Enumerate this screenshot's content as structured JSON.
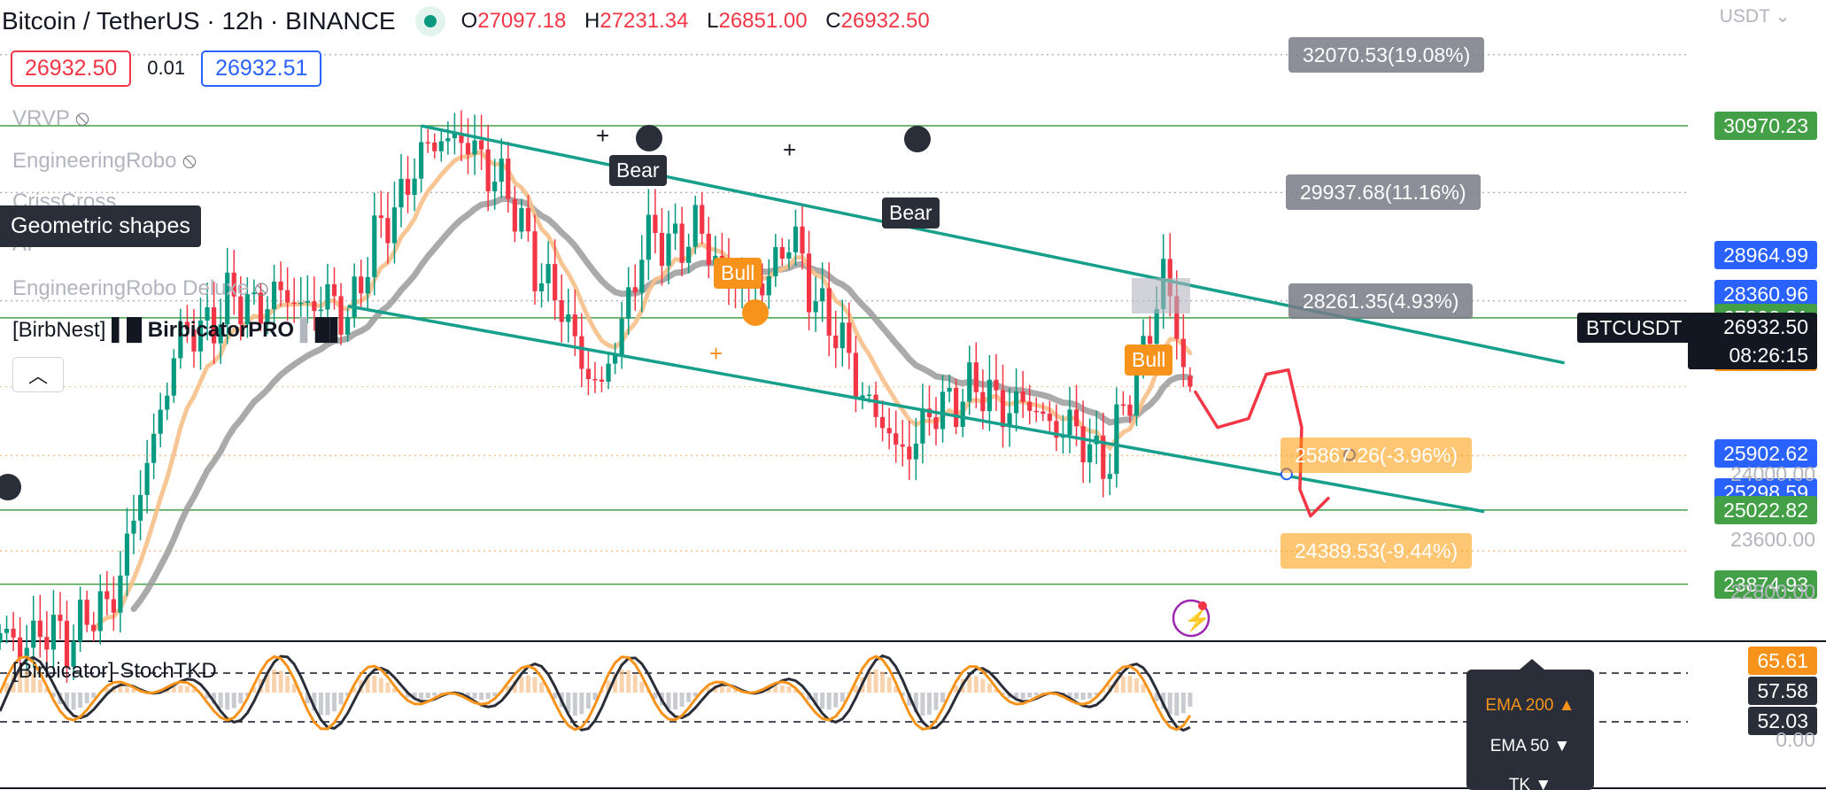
{
  "header": {
    "symbol": "Bitcoin / TetherUS · 12h · BINANCE",
    "ohlc": [
      {
        "k": "O",
        "v": "27097.18"
      },
      {
        "k": "H",
        "v": "27231.34"
      },
      {
        "k": "L",
        "v": "26851.00"
      },
      {
        "k": "C",
        "v": "26932.50"
      }
    ],
    "sell_price": "26932.50",
    "spread": "0.01",
    "buy_price": "26932.51",
    "currency": "USDT"
  },
  "legend": {
    "items": [
      "VRVP",
      "EngineeringRobo",
      "CrissCross",
      "AI",
      "EngineeringRobo Deluxe"
    ],
    "birbnest": "[BirbNest]",
    "birbicator": "BirbicatorPRO"
  },
  "tooltip": "Geometric shapes",
  "signals": {
    "bear": "Bear",
    "bull": "Bull"
  },
  "symbol_tag": "BTCUSDT",
  "current": {
    "price": "26932.50",
    "countdown": "08:26:15"
  },
  "stoch": {
    "label": "[Birbicator] StochTKD"
  },
  "ema_menu": {
    "ema200": "EMA 200 ▲",
    "ema50": "EMA 50 ▼",
    "tk": "TK ▼"
  },
  "colors": {
    "up": "#089981",
    "down": "#f23645",
    "channel": "#169f8a",
    "ema_orange": "#f7c08a",
    "ema_gray": "#9b9b9b",
    "projection": "#f23645"
  },
  "chart_data": {
    "type": "candlestick",
    "title": "Bitcoin / TetherUS · 12h · BINANCE",
    "ylim": [
      22500,
      32300
    ],
    "price_ticks": [
      "24000.00",
      "23600.00",
      "22800.00"
    ],
    "axis_labels": [
      {
        "value": 30970.23,
        "text": "30970.23",
        "color": "#43a047"
      },
      {
        "value": 28964.99,
        "text": "28964.99",
        "color": "#2962ff"
      },
      {
        "value": 28360.96,
        "text": "28360.96",
        "color": "#2962ff"
      },
      {
        "value": 27998.31,
        "text": "27998.31",
        "color": "#43a047"
      },
      {
        "value": 27395.32,
        "text": "27395.32",
        "color": "#f7931a"
      },
      {
        "value": 25902.62,
        "text": "25902.62",
        "color": "#2962ff"
      },
      {
        "value": 25298.59,
        "text": "25298.59",
        "color": "#2962ff"
      },
      {
        "value": 25022.82,
        "text": "25022.82",
        "color": "#43a047"
      },
      {
        "value": 23874.93,
        "text": "23874.93",
        "color": "#43a047"
      }
    ],
    "horizontal_levels": [
      30970.23,
      27998.31,
      25022.82,
      23874.93
    ],
    "projections": [
      {
        "value": 32070.53,
        "text": "32070.53(19.08%)",
        "style": "gray"
      },
      {
        "value": 29937.68,
        "text": "29937.68(11.16%)",
        "style": "gray"
      },
      {
        "value": 28261.35,
        "text": "28261.35(4.93%)",
        "style": "gray"
      },
      {
        "value": 25867.26,
        "text": "25867.26(-3.96%)",
        "style": "orange"
      },
      {
        "value": 24389.53,
        "text": "24389.53(-9.44%)",
        "style": "orange"
      }
    ],
    "path_keypoints": [
      {
        "i": 0,
        "c": 23000
      },
      {
        "i": 10,
        "c": 23100
      },
      {
        "i": 16,
        "c": 23500
      },
      {
        "i": 20,
        "c": 24800
      },
      {
        "i": 26,
        "c": 27500
      },
      {
        "i": 34,
        "c": 28200
      },
      {
        "i": 44,
        "c": 28300
      },
      {
        "i": 52,
        "c": 28100
      },
      {
        "i": 58,
        "c": 29600
      },
      {
        "i": 66,
        "c": 30900
      },
      {
        "i": 74,
        "c": 30300
      },
      {
        "i": 80,
        "c": 28900
      },
      {
        "i": 90,
        "c": 26800
      },
      {
        "i": 96,
        "c": 29100
      },
      {
        "i": 104,
        "c": 29300
      },
      {
        "i": 112,
        "c": 28300
      },
      {
        "i": 118,
        "c": 29200
      },
      {
        "i": 126,
        "c": 27500
      },
      {
        "i": 134,
        "c": 25900
      },
      {
        "i": 144,
        "c": 26900
      },
      {
        "i": 156,
        "c": 26500
      },
      {
        "i": 166,
        "c": 25800
      },
      {
        "i": 174,
        "c": 28600
      },
      {
        "i": 178,
        "c": 26932.5
      }
    ],
    "last_candle": {
      "o": 27097.18,
      "h": 27231.34,
      "l": 26851.0,
      "c": 26932.5
    },
    "channel": {
      "upper": [
        {
          "i": 63,
          "price": 30970
        },
        {
          "i": 234,
          "price": 27300
        }
      ],
      "lower": [
        {
          "i": 52,
          "price": 28180
        },
        {
          "i": 222,
          "price": 25000
        }
      ]
    },
    "stochastic": {
      "levels": [
        65.61,
        57.58,
        52.03
      ],
      "tick": "0.00"
    }
  }
}
